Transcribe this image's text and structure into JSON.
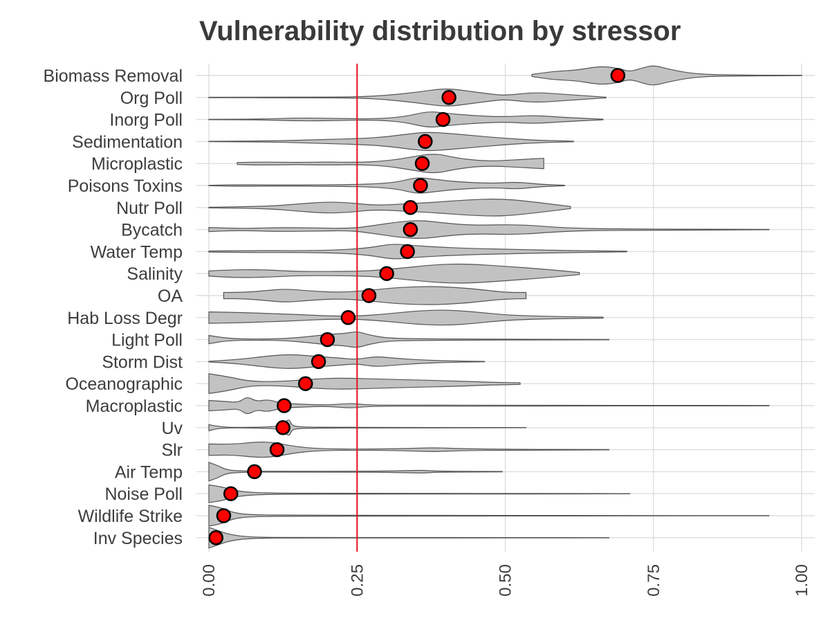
{
  "chart_data": {
    "type": "violin",
    "title": "Vulnerability distribution by stressor",
    "xlabel": "",
    "ylabel": "",
    "xlim": [
      0,
      1
    ],
    "x_ticks": [
      0,
      0.25,
      0.5,
      0.75,
      1.0
    ],
    "x_tick_labels": [
      "0.00",
      "0.25",
      "0.50",
      "0.75",
      "1.00"
    ],
    "x_tick_label_rotation": "vertical",
    "reference_line": {
      "x": 0.25,
      "color": "#e8101a"
    },
    "grid": true,
    "point_color": "#ff0000",
    "violin_fill": "#c2c2c2",
    "categories": [
      {
        "name": "Biomass Removal",
        "mean": 0.69,
        "min": 0.545,
        "max": 1.0,
        "density": [
          [
            0.545,
            0.1
          ],
          [
            0.58,
            0.4
          ],
          [
            0.62,
            0.5
          ],
          [
            0.66,
            0.9
          ],
          [
            0.69,
            0.7
          ],
          [
            0.71,
            0.35
          ],
          [
            0.73,
            0.7
          ],
          [
            0.75,
            1.0
          ],
          [
            0.78,
            0.55
          ],
          [
            0.82,
            0.15
          ],
          [
            0.88,
            0.04
          ],
          [
            1.0,
            0.02
          ]
        ]
      },
      {
        "name": "Org Poll",
        "mean": 0.405,
        "min": 0.0,
        "max": 0.67,
        "density": [
          [
            0.0,
            0.02
          ],
          [
            0.15,
            0.03
          ],
          [
            0.25,
            0.05
          ],
          [
            0.3,
            0.2
          ],
          [
            0.35,
            0.5
          ],
          [
            0.4,
            0.9
          ],
          [
            0.44,
            0.6
          ],
          [
            0.48,
            0.3
          ],
          [
            0.5,
            0.2
          ],
          [
            0.55,
            0.5
          ],
          [
            0.6,
            0.3
          ],
          [
            0.67,
            0.03
          ]
        ]
      },
      {
        "name": "Inorg Poll",
        "mean": 0.395,
        "min": 0.0,
        "max": 0.665,
        "density": [
          [
            0.0,
            0.02
          ],
          [
            0.08,
            0.03
          ],
          [
            0.15,
            0.15
          ],
          [
            0.22,
            0.1
          ],
          [
            0.28,
            0.05
          ],
          [
            0.33,
            0.25
          ],
          [
            0.37,
            0.8
          ],
          [
            0.4,
            0.6
          ],
          [
            0.45,
            0.35
          ],
          [
            0.5,
            0.25
          ],
          [
            0.55,
            0.4
          ],
          [
            0.6,
            0.2
          ],
          [
            0.665,
            0.03
          ]
        ]
      },
      {
        "name": "Sedimentation",
        "mean": 0.365,
        "min": 0.0,
        "max": 0.615,
        "density": [
          [
            0.0,
            0.02
          ],
          [
            0.1,
            0.04
          ],
          [
            0.2,
            0.2
          ],
          [
            0.26,
            0.3
          ],
          [
            0.3,
            0.45
          ],
          [
            0.34,
            0.75
          ],
          [
            0.37,
            0.9
          ],
          [
            0.4,
            0.8
          ],
          [
            0.44,
            0.6
          ],
          [
            0.5,
            0.3
          ],
          [
            0.56,
            0.1
          ],
          [
            0.615,
            0.03
          ]
        ]
      },
      {
        "name": "Microplastic",
        "mean": 0.36,
        "min": 0.048,
        "max": 0.565,
        "density": [
          [
            0.048,
            0.1
          ],
          [
            0.09,
            0.15
          ],
          [
            0.15,
            0.1
          ],
          [
            0.2,
            0.15
          ],
          [
            0.25,
            0.1
          ],
          [
            0.3,
            0.25
          ],
          [
            0.34,
            0.6
          ],
          [
            0.38,
            1.0
          ],
          [
            0.42,
            0.5
          ],
          [
            0.47,
            0.2
          ],
          [
            0.53,
            0.4
          ],
          [
            0.565,
            0.5
          ]
        ]
      },
      {
        "name": "Poisons Toxins",
        "mean": 0.357,
        "min": 0.0,
        "max": 0.6,
        "density": [
          [
            0.0,
            0.02
          ],
          [
            0.05,
            0.08
          ],
          [
            0.12,
            0.04
          ],
          [
            0.22,
            0.08
          ],
          [
            0.28,
            0.15
          ],
          [
            0.32,
            0.35
          ],
          [
            0.35,
            0.8
          ],
          [
            0.38,
            0.6
          ],
          [
            0.42,
            0.35
          ],
          [
            0.48,
            0.2
          ],
          [
            0.52,
            0.35
          ],
          [
            0.56,
            0.1
          ],
          [
            0.6,
            0.03
          ]
        ]
      },
      {
        "name": "Nutr Poll",
        "mean": 0.34,
        "min": 0.0,
        "max": 0.61,
        "density": [
          [
            0.0,
            0.03
          ],
          [
            0.1,
            0.1
          ],
          [
            0.15,
            0.35
          ],
          [
            0.2,
            0.55
          ],
          [
            0.24,
            0.45
          ],
          [
            0.28,
            0.2
          ],
          [
            0.33,
            0.35
          ],
          [
            0.38,
            0.5
          ],
          [
            0.44,
            0.75
          ],
          [
            0.49,
            0.85
          ],
          [
            0.54,
            0.6
          ],
          [
            0.61,
            0.1
          ]
        ]
      },
      {
        "name": "Bycatch",
        "mean": 0.34,
        "min": 0.0,
        "max": 0.945,
        "density": [
          [
            0.0,
            0.2
          ],
          [
            0.05,
            0.08
          ],
          [
            0.12,
            0.2
          ],
          [
            0.18,
            0.15
          ],
          [
            0.24,
            0.1
          ],
          [
            0.28,
            0.4
          ],
          [
            0.32,
            0.75
          ],
          [
            0.36,
            0.9
          ],
          [
            0.4,
            0.6
          ],
          [
            0.45,
            0.4
          ],
          [
            0.52,
            0.5
          ],
          [
            0.6,
            0.15
          ],
          [
            0.7,
            0.05
          ],
          [
            0.945,
            0.02
          ]
        ]
      },
      {
        "name": "Water Temp",
        "mean": 0.335,
        "min": 0.0,
        "max": 0.705,
        "density": [
          [
            0.0,
            0.05
          ],
          [
            0.08,
            0.1
          ],
          [
            0.15,
            0.08
          ],
          [
            0.22,
            0.15
          ],
          [
            0.27,
            0.35
          ],
          [
            0.31,
            0.75
          ],
          [
            0.34,
            0.6
          ],
          [
            0.38,
            0.45
          ],
          [
            0.44,
            0.3
          ],
          [
            0.52,
            0.2
          ],
          [
            0.6,
            0.1
          ],
          [
            0.705,
            0.03
          ]
        ]
      },
      {
        "name": "Salinity",
        "mean": 0.3,
        "min": 0.0,
        "max": 0.625,
        "density": [
          [
            0.0,
            0.25
          ],
          [
            0.05,
            0.4
          ],
          [
            0.1,
            0.35
          ],
          [
            0.15,
            0.2
          ],
          [
            0.22,
            0.2
          ],
          [
            0.27,
            0.25
          ],
          [
            0.32,
            0.5
          ],
          [
            0.38,
            0.85
          ],
          [
            0.43,
            0.95
          ],
          [
            0.5,
            0.7
          ],
          [
            0.57,
            0.4
          ],
          [
            0.625,
            0.1
          ]
        ]
      },
      {
        "name": "OA",
        "mean": 0.27,
        "min": 0.025,
        "max": 0.535,
        "density": [
          [
            0.025,
            0.3
          ],
          [
            0.06,
            0.3
          ],
          [
            0.1,
            0.5
          ],
          [
            0.13,
            0.65
          ],
          [
            0.17,
            0.45
          ],
          [
            0.22,
            0.3
          ],
          [
            0.27,
            0.5
          ],
          [
            0.32,
            0.8
          ],
          [
            0.38,
            0.9
          ],
          [
            0.44,
            0.7
          ],
          [
            0.5,
            0.3
          ],
          [
            0.535,
            0.3
          ]
        ]
      },
      {
        "name": "Hab Loss Degr",
        "mean": 0.235,
        "min": 0.0,
        "max": 0.665,
        "density": [
          [
            0.0,
            0.55
          ],
          [
            0.05,
            0.5
          ],
          [
            0.1,
            0.4
          ],
          [
            0.15,
            0.3
          ],
          [
            0.2,
            0.15
          ],
          [
            0.25,
            0.15
          ],
          [
            0.3,
            0.35
          ],
          [
            0.35,
            0.65
          ],
          [
            0.4,
            0.75
          ],
          [
            0.45,
            0.55
          ],
          [
            0.5,
            0.25
          ],
          [
            0.58,
            0.1
          ],
          [
            0.665,
            0.05
          ]
        ]
      },
      {
        "name": "Light Poll",
        "mean": 0.2,
        "min": 0.0,
        "max": 0.675,
        "density": [
          [
            0.0,
            0.4
          ],
          [
            0.03,
            0.1
          ],
          [
            0.08,
            0.05
          ],
          [
            0.13,
            0.1
          ],
          [
            0.17,
            0.3
          ],
          [
            0.2,
            0.5
          ],
          [
            0.23,
            0.6
          ],
          [
            0.25,
            0.8
          ],
          [
            0.27,
            0.45
          ],
          [
            0.3,
            0.15
          ],
          [
            0.35,
            0.08
          ],
          [
            0.45,
            0.05
          ],
          [
            0.55,
            0.03
          ],
          [
            0.675,
            0.02
          ]
        ]
      },
      {
        "name": "Storm Dist",
        "mean": 0.185,
        "min": 0.0,
        "max": 0.465,
        "density": [
          [
            0.0,
            0.03
          ],
          [
            0.05,
            0.2
          ],
          [
            0.1,
            0.55
          ],
          [
            0.14,
            0.7
          ],
          [
            0.18,
            0.5
          ],
          [
            0.22,
            0.35
          ],
          [
            0.25,
            0.2
          ],
          [
            0.28,
            0.5
          ],
          [
            0.31,
            0.35
          ],
          [
            0.36,
            0.15
          ],
          [
            0.42,
            0.05
          ],
          [
            0.465,
            0.02
          ]
        ]
      },
      {
        "name": "Oceanographic",
        "mean": 0.163,
        "min": 0.0,
        "max": 0.525,
        "density": [
          [
            0.0,
            0.95
          ],
          [
            0.03,
            0.7
          ],
          [
            0.07,
            0.2
          ],
          [
            0.12,
            0.2
          ],
          [
            0.18,
            0.45
          ],
          [
            0.22,
            0.55
          ],
          [
            0.28,
            0.45
          ],
          [
            0.35,
            0.35
          ],
          [
            0.42,
            0.25
          ],
          [
            0.48,
            0.12
          ],
          [
            0.525,
            0.08
          ]
        ]
      },
      {
        "name": "Macroplastic",
        "mean": 0.127,
        "min": 0.0,
        "max": 0.945,
        "density": [
          [
            0.0,
            0.5
          ],
          [
            0.03,
            0.4
          ],
          [
            0.05,
            0.3
          ],
          [
            0.065,
            0.9
          ],
          [
            0.08,
            0.4
          ],
          [
            0.1,
            0.6
          ],
          [
            0.12,
            0.25
          ],
          [
            0.15,
            0.15
          ],
          [
            0.2,
            0.05
          ],
          [
            0.24,
            0.25
          ],
          [
            0.27,
            0.05
          ],
          [
            0.35,
            0.06
          ],
          [
            0.5,
            0.04
          ],
          [
            0.7,
            0.03
          ],
          [
            0.945,
            0.02
          ]
        ]
      },
      {
        "name": "Uv",
        "mean": 0.125,
        "min": 0.0,
        "max": 0.535,
        "density": [
          [
            0.0,
            0.3
          ],
          [
            0.02,
            0.02
          ],
          [
            0.08,
            0.03
          ],
          [
            0.11,
            0.1
          ],
          [
            0.125,
            0.25
          ],
          [
            0.135,
            0.9
          ],
          [
            0.14,
            0.2
          ],
          [
            0.15,
            0.1
          ],
          [
            0.17,
            0.05
          ],
          [
            0.2,
            0.04
          ],
          [
            0.3,
            0.02
          ],
          [
            0.535,
            0.01
          ]
        ]
      },
      {
        "name": "Slr",
        "mean": 0.115,
        "min": 0.0,
        "max": 0.675,
        "density": [
          [
            0.0,
            0.55
          ],
          [
            0.04,
            0.5
          ],
          [
            0.08,
            0.75
          ],
          [
            0.11,
            0.7
          ],
          [
            0.14,
            0.35
          ],
          [
            0.18,
            0.1
          ],
          [
            0.25,
            0.05
          ],
          [
            0.33,
            0.1
          ],
          [
            0.38,
            0.2
          ],
          [
            0.42,
            0.1
          ],
          [
            0.5,
            0.04
          ],
          [
            0.675,
            0.02
          ]
        ]
      },
      {
        "name": "Air Temp",
        "mean": 0.077,
        "min": 0.0,
        "max": 0.495,
        "density": [
          [
            0.0,
            0.9
          ],
          [
            0.015,
            0.6
          ],
          [
            0.03,
            0.15
          ],
          [
            0.06,
            0.05
          ],
          [
            0.1,
            0.04
          ],
          [
            0.2,
            0.04
          ],
          [
            0.3,
            0.05
          ],
          [
            0.36,
            0.15
          ],
          [
            0.38,
            0.05
          ],
          [
            0.45,
            0.03
          ],
          [
            0.495,
            0.02
          ]
        ]
      },
      {
        "name": "Noise Poll",
        "mean": 0.037,
        "min": 0.0,
        "max": 0.71,
        "density": [
          [
            0.0,
            0.85
          ],
          [
            0.02,
            0.7
          ],
          [
            0.05,
            0.2
          ],
          [
            0.1,
            0.05
          ],
          [
            0.2,
            0.04
          ],
          [
            0.3,
            0.04
          ],
          [
            0.4,
            0.03
          ],
          [
            0.5,
            0.03
          ],
          [
            0.6,
            0.02
          ],
          [
            0.71,
            0.01
          ]
        ]
      },
      {
        "name": "Wildlife Strike",
        "mean": 0.025,
        "min": 0.0,
        "max": 0.945,
        "density": [
          [
            0.0,
            1.0
          ],
          [
            0.02,
            0.8
          ],
          [
            0.04,
            0.3
          ],
          [
            0.07,
            0.08
          ],
          [
            0.15,
            0.05
          ],
          [
            0.3,
            0.03
          ],
          [
            0.5,
            0.03
          ],
          [
            0.7,
            0.02
          ],
          [
            0.945,
            0.01
          ]
        ]
      },
      {
        "name": "Inv Species",
        "mean": 0.012,
        "min": 0.0,
        "max": 0.675,
        "density": [
          [
            0.0,
            1.0
          ],
          [
            0.015,
            0.7
          ],
          [
            0.035,
            0.3
          ],
          [
            0.07,
            0.05
          ],
          [
            0.15,
            0.02
          ],
          [
            0.3,
            0.02
          ],
          [
            0.5,
            0.02
          ],
          [
            0.675,
            0.01
          ]
        ]
      }
    ]
  }
}
